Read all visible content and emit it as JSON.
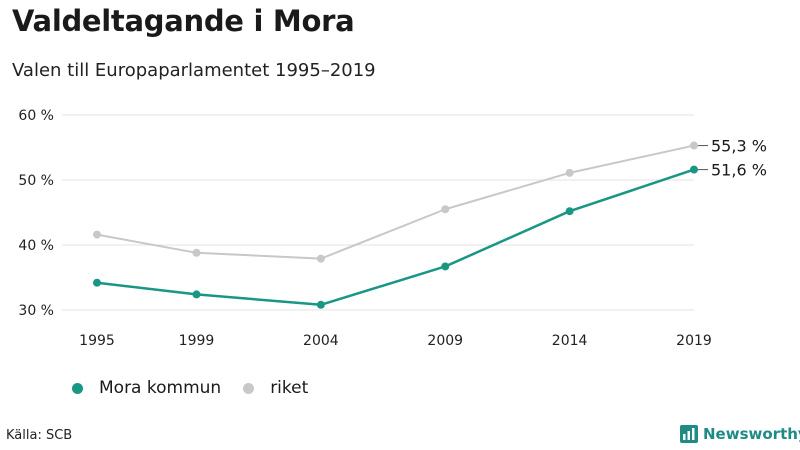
{
  "title": "Valdeltagande i Mora",
  "subtitle": "Valen till Europaparlamentet 1995–2019",
  "source": "Källa: SCB",
  "brand": "Newsworthy",
  "colors": {
    "mora": "#1a9685",
    "riket": "#c8c8c8",
    "grid": "#e3e3e3",
    "brand": "#1f8a86"
  },
  "chart_data": {
    "type": "line",
    "categories": [
      "1995",
      "1999",
      "2004",
      "2009",
      "2014",
      "2019"
    ],
    "y_ticks": [
      "30 %",
      "40 %",
      "50 %",
      "60 %"
    ],
    "ylim": [
      30,
      60
    ],
    "grid": true,
    "legend_position": "bottom-left",
    "series": [
      {
        "name": "Mora kommun",
        "color": "#1a9685",
        "values": [
          34.2,
          32.4,
          30.8,
          36.7,
          45.2,
          51.6
        ],
        "end_label": "51,6 %"
      },
      {
        "name": "riket",
        "color": "#c8c8c8",
        "values": [
          41.6,
          38.8,
          37.9,
          45.5,
          51.1,
          55.3
        ],
        "end_label": "55,3 %"
      }
    ]
  }
}
